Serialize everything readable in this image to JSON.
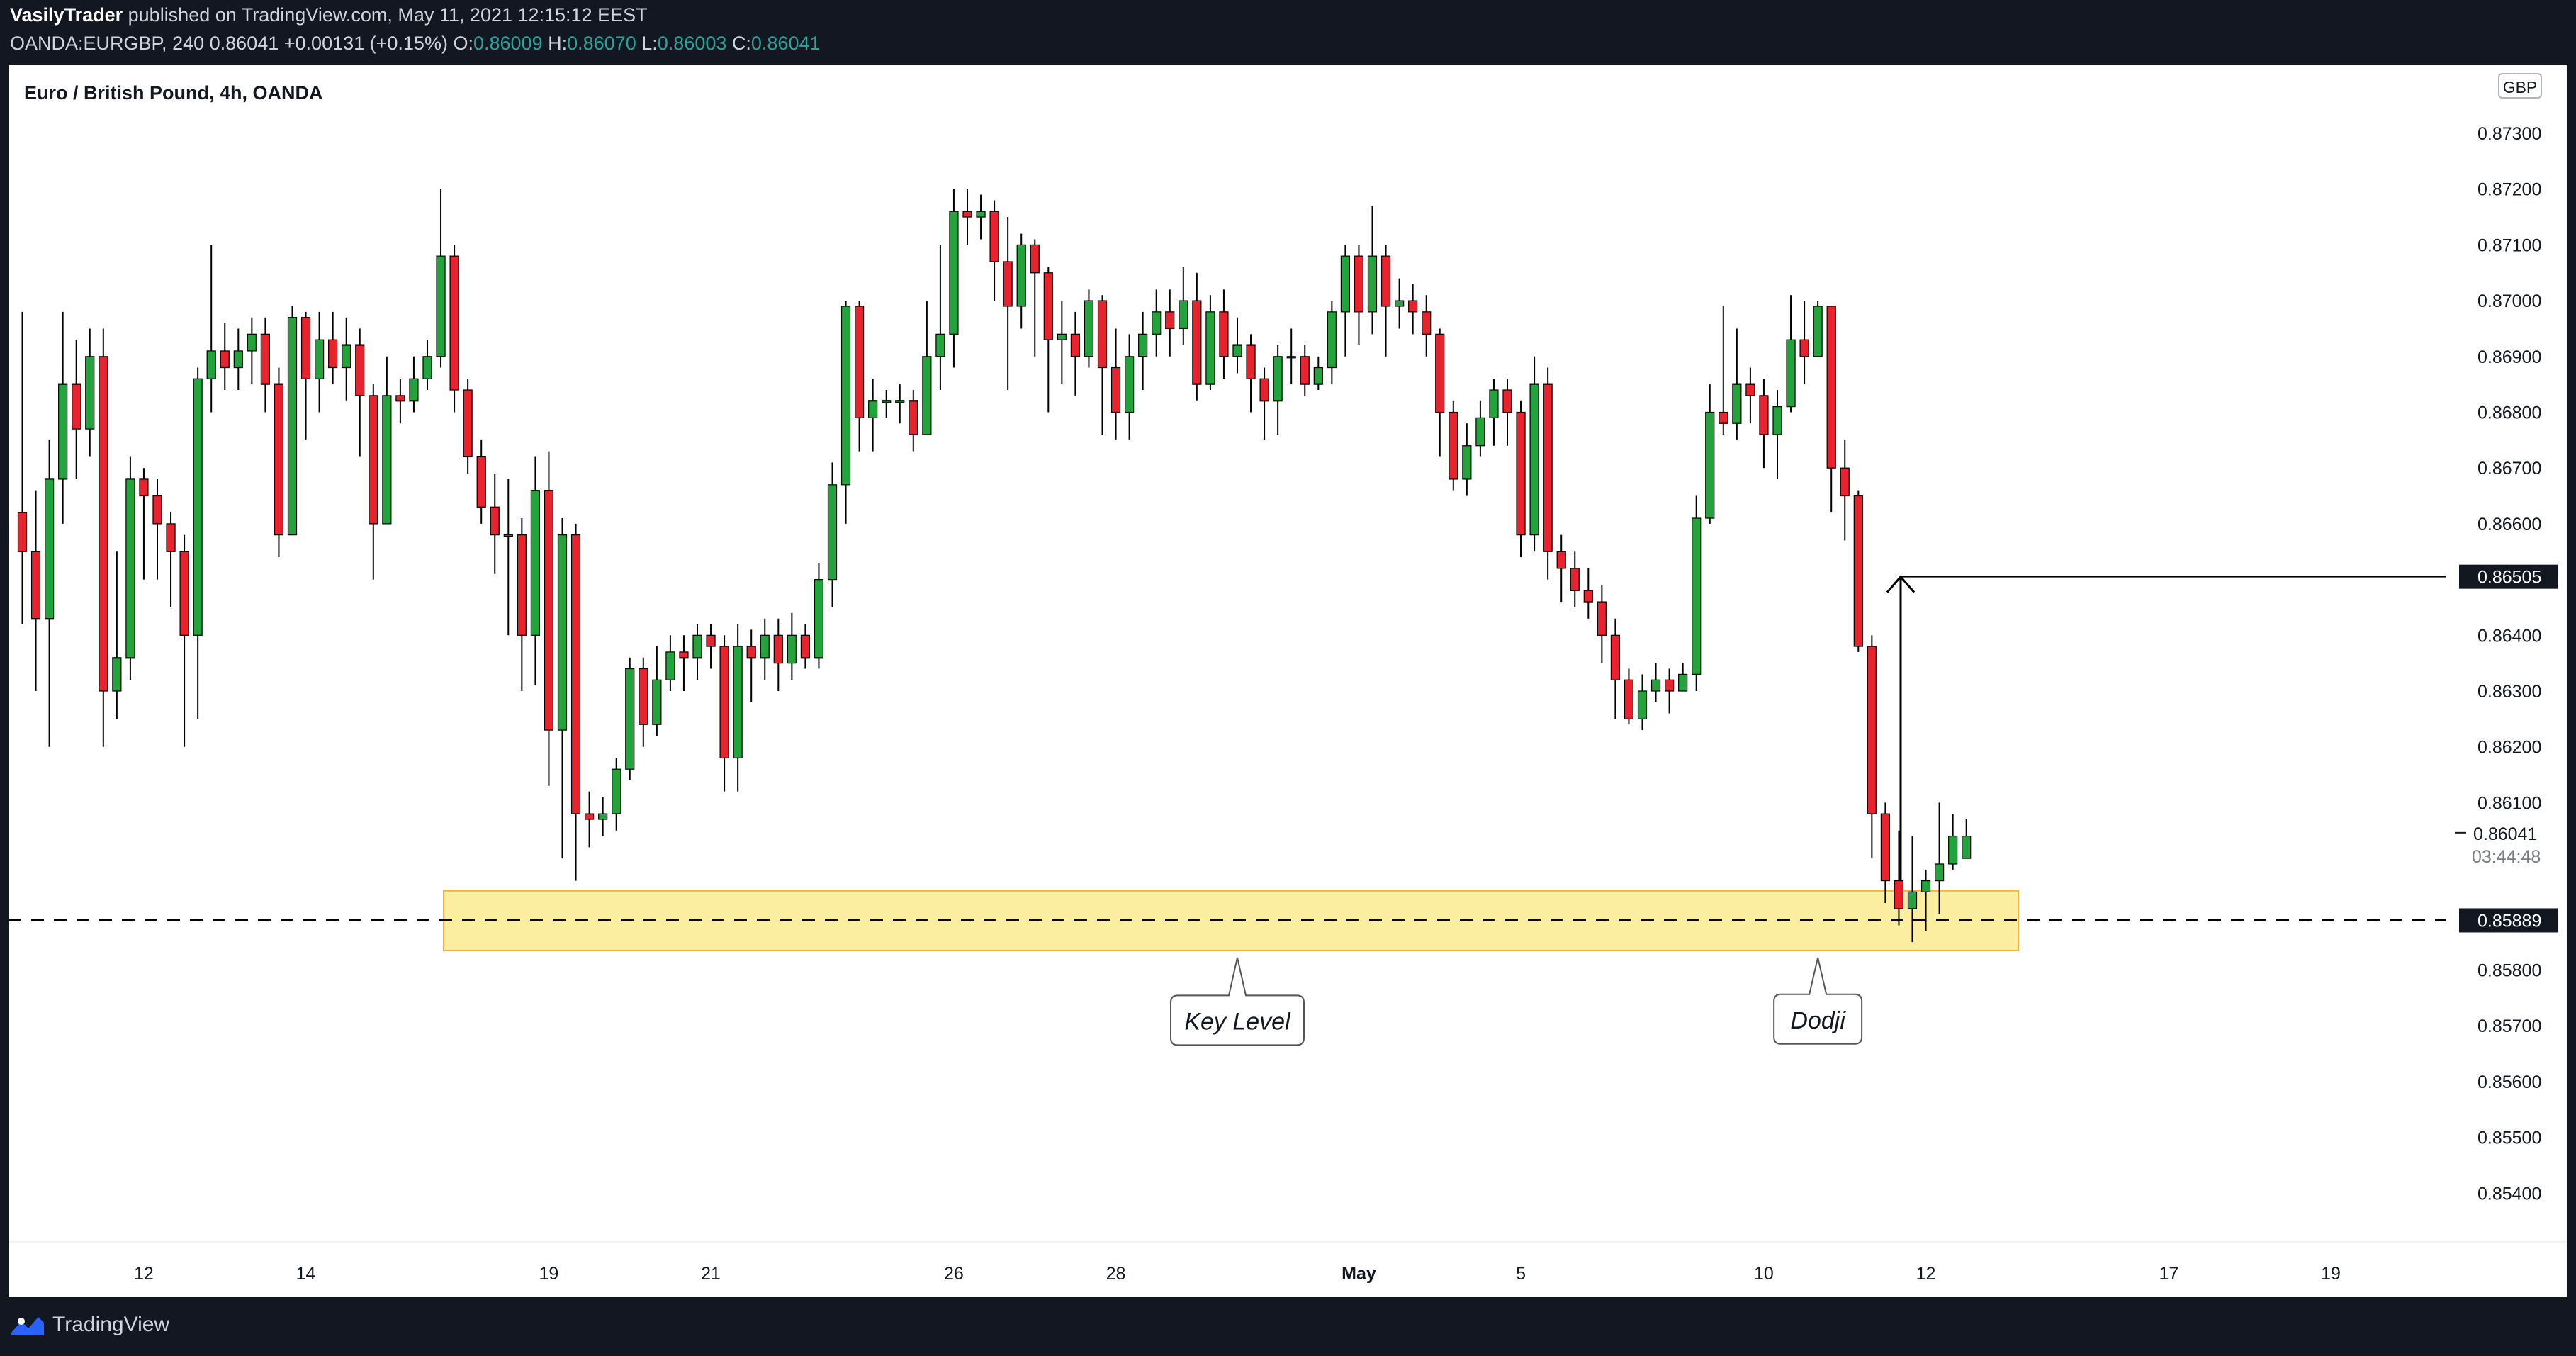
{
  "header": {
    "author": "VasilyTrader",
    "published_text": "published on TradingView.com, May 11, 2021 12:15:12 EEST",
    "symbol": "OANDA:EURGBP, 240",
    "last": "0.86041",
    "change": "+0.00131 (+0.15%)",
    "o_label": "O:",
    "o_value": "0.86009",
    "h_label": "H:",
    "h_value": "0.86070",
    "l_label": "L:",
    "l_value": "0.86003",
    "c_label": "C:",
    "c_value": "0.86041"
  },
  "footer": {
    "brand": "TradingView"
  },
  "colors": {
    "up": "#22a33c",
    "down": "#e8232d",
    "zone_fill": "#fbeea0",
    "zone_stroke": "#f2b33c",
    "axis_text": "#131722",
    "dark_tag": "#131722"
  },
  "chart_data": {
    "type": "candlestick",
    "title": "Euro / British Pound, 4h, OANDA",
    "currency_badge": "GBP",
    "y_ticks": [
      "0.87300",
      "0.87200",
      "0.87100",
      "0.87000",
      "0.86900",
      "0.86800",
      "0.86700",
      "0.86600",
      "0.86400",
      "0.86300",
      "0.86200",
      "0.86100",
      "0.85800",
      "0.85700",
      "0.85600",
      "0.85500",
      "0.85400"
    ],
    "ylim": [
      0.8534,
      0.8744
    ],
    "x_ticks": [
      {
        "label": "12",
        "i": 9
      },
      {
        "label": "14",
        "i": 21
      },
      {
        "label": "19",
        "i": 39
      },
      {
        "label": "21",
        "i": 51
      },
      {
        "label": "26",
        "i": 69
      },
      {
        "label": "28",
        "i": 81
      },
      {
        "label": "May",
        "i": 99
      },
      {
        "label": "5",
        "i": 111
      },
      {
        "label": "10",
        "i": 129
      },
      {
        "label": "12",
        "i": 141
      },
      {
        "label": "17",
        "i": 159
      },
      {
        "label": "19",
        "i": 171
      }
    ],
    "price_tags": [
      {
        "value": "0.86505",
        "price": 0.86505,
        "style": "dark"
      },
      {
        "value": "0.85889",
        "price": 0.85889,
        "style": "dark"
      },
      {
        "value": "0.86041",
        "price": 0.86041,
        "style": "plain"
      }
    ],
    "countdown": "03:44:48",
    "key_level": {
      "price": 0.85889,
      "zone_low": 0.85835,
      "zone_high": 0.85942
    },
    "target": {
      "price": 0.86505
    },
    "annotations": [
      {
        "text": "Key Level",
        "i": 90,
        "price": 0.8571
      },
      {
        "text": "Dodji",
        "i": 133,
        "price": 0.85712
      }
    ],
    "candles": [
      [
        0.8662,
        0.8655,
        0.8698,
        0.8642
      ],
      [
        0.8655,
        0.8643,
        0.8666,
        0.863
      ],
      [
        0.8643,
        0.8668,
        0.8675,
        0.862
      ],
      [
        0.8668,
        0.8685,
        0.8698,
        0.866
      ],
      [
        0.8685,
        0.8677,
        0.8693,
        0.8668
      ],
      [
        0.8677,
        0.869,
        0.8695,
        0.8672
      ],
      [
        0.869,
        0.863,
        0.8695,
        0.862
      ],
      [
        0.863,
        0.8636,
        0.8655,
        0.8625
      ],
      [
        0.8636,
        0.8668,
        0.8672,
        0.8632
      ],
      [
        0.8668,
        0.8665,
        0.867,
        0.865
      ],
      [
        0.8665,
        0.866,
        0.8668,
        0.865
      ],
      [
        0.866,
        0.8655,
        0.8662,
        0.8645
      ],
      [
        0.8655,
        0.864,
        0.8658,
        0.862
      ],
      [
        0.864,
        0.8686,
        0.8688,
        0.8625
      ],
      [
        0.8686,
        0.8691,
        0.871,
        0.868
      ],
      [
        0.8691,
        0.8688,
        0.8696,
        0.8684
      ],
      [
        0.8688,
        0.8691,
        0.8695,
        0.8684
      ],
      [
        0.8691,
        0.8694,
        0.8697,
        0.8685
      ],
      [
        0.8694,
        0.8685,
        0.8697,
        0.868
      ],
      [
        0.8685,
        0.8658,
        0.8688,
        0.8654
      ],
      [
        0.8658,
        0.8697,
        0.8699,
        0.867
      ],
      [
        0.8697,
        0.8686,
        0.8698,
        0.8675
      ],
      [
        0.8686,
        0.8693,
        0.8698,
        0.868
      ],
      [
        0.8693,
        0.8688,
        0.8698,
        0.8685
      ],
      [
        0.8688,
        0.8692,
        0.8697,
        0.8682
      ],
      [
        0.8692,
        0.8683,
        0.8695,
        0.8672
      ],
      [
        0.8683,
        0.866,
        0.8685,
        0.865
      ],
      [
        0.866,
        0.8683,
        0.869,
        0.866
      ],
      [
        0.8683,
        0.8682,
        0.8686,
        0.8678
      ],
      [
        0.8682,
        0.8686,
        0.869,
        0.868
      ],
      [
        0.8686,
        0.869,
        0.8693,
        0.8684
      ],
      [
        0.869,
        0.8708,
        0.872,
        0.8688
      ],
      [
        0.8708,
        0.8684,
        0.871,
        0.868
      ],
      [
        0.8684,
        0.8672,
        0.8686,
        0.8669
      ],
      [
        0.8672,
        0.8663,
        0.8675,
        0.866
      ],
      [
        0.8663,
        0.8658,
        0.8669,
        0.8651
      ],
      [
        0.8658,
        0.8658,
        0.8668,
        0.864
      ],
      [
        0.8658,
        0.864,
        0.8661,
        0.863
      ],
      [
        0.864,
        0.8666,
        0.8672,
        0.8631
      ],
      [
        0.8666,
        0.8623,
        0.8673,
        0.8613
      ],
      [
        0.8623,
        0.8658,
        0.8661,
        0.86
      ],
      [
        0.8658,
        0.8608,
        0.866,
        0.8596
      ],
      [
        0.8608,
        0.8607,
        0.8612,
        0.8602
      ],
      [
        0.8607,
        0.8608,
        0.8611,
        0.8604
      ],
      [
        0.8608,
        0.8616,
        0.8618,
        0.8605
      ],
      [
        0.8616,
        0.8634,
        0.8636,
        0.8614
      ],
      [
        0.8634,
        0.8624,
        0.8636,
        0.862
      ],
      [
        0.8624,
        0.8632,
        0.8638,
        0.8622
      ],
      [
        0.8632,
        0.8637,
        0.864,
        0.863
      ],
      [
        0.8637,
        0.8636,
        0.864,
        0.863
      ],
      [
        0.8636,
        0.864,
        0.8642,
        0.8632
      ],
      [
        0.864,
        0.8638,
        0.8642,
        0.8634
      ],
      [
        0.8638,
        0.8618,
        0.864,
        0.8612
      ],
      [
        0.8618,
        0.8638,
        0.8642,
        0.8612
      ],
      [
        0.8638,
        0.8636,
        0.8641,
        0.8628
      ],
      [
        0.8636,
        0.864,
        0.8643,
        0.8632
      ],
      [
        0.864,
        0.8635,
        0.8643,
        0.863
      ],
      [
        0.8635,
        0.864,
        0.8644,
        0.8632
      ],
      [
        0.864,
        0.8636,
        0.8642,
        0.8634
      ],
      [
        0.8636,
        0.865,
        0.8653,
        0.8634
      ],
      [
        0.865,
        0.8667,
        0.8671,
        0.8645
      ],
      [
        0.8667,
        0.8699,
        0.87,
        0.866
      ],
      [
        0.8699,
        0.8679,
        0.87,
        0.8673
      ],
      [
        0.8679,
        0.8682,
        0.8686,
        0.8673
      ],
      [
        0.8682,
        0.8682,
        0.8684,
        0.8679
      ],
      [
        0.8682,
        0.8682,
        0.8685,
        0.8678
      ],
      [
        0.8682,
        0.8676,
        0.8684,
        0.8673
      ],
      [
        0.8676,
        0.869,
        0.87,
        0.8676
      ],
      [
        0.869,
        0.8694,
        0.871,
        0.8684
      ],
      [
        0.8694,
        0.8716,
        0.872,
        0.8688
      ],
      [
        0.8716,
        0.8715,
        0.872,
        0.871
      ],
      [
        0.8715,
        0.8716,
        0.8719,
        0.8711
      ],
      [
        0.8716,
        0.8707,
        0.8718,
        0.87
      ],
      [
        0.8707,
        0.8699,
        0.8715,
        0.8684
      ],
      [
        0.8699,
        0.871,
        0.8712,
        0.8695
      ],
      [
        0.871,
        0.8705,
        0.8711,
        0.869
      ],
      [
        0.8705,
        0.8693,
        0.8706,
        0.868
      ],
      [
        0.8693,
        0.8694,
        0.87,
        0.8685
      ],
      [
        0.8694,
        0.869,
        0.8698,
        0.8683
      ],
      [
        0.869,
        0.87,
        0.8702,
        0.8688
      ],
      [
        0.87,
        0.8688,
        0.8701,
        0.8676
      ],
      [
        0.8688,
        0.868,
        0.8695,
        0.8675
      ],
      [
        0.868,
        0.869,
        0.8694,
        0.8675
      ],
      [
        0.869,
        0.8694,
        0.8698,
        0.8684
      ],
      [
        0.8694,
        0.8698,
        0.8702,
        0.869
      ],
      [
        0.8698,
        0.8695,
        0.8702,
        0.869
      ],
      [
        0.8695,
        0.87,
        0.8706,
        0.8692
      ],
      [
        0.87,
        0.8685,
        0.8705,
        0.8682
      ],
      [
        0.8685,
        0.8698,
        0.8701,
        0.8684
      ],
      [
        0.8698,
        0.869,
        0.8702,
        0.8686
      ],
      [
        0.869,
        0.8692,
        0.8697,
        0.8687
      ],
      [
        0.8692,
        0.8686,
        0.8694,
        0.868
      ],
      [
        0.8686,
        0.8682,
        0.8688,
        0.8675
      ],
      [
        0.8682,
        0.869,
        0.8692,
        0.8676
      ],
      [
        0.869,
        0.869,
        0.8695,
        0.8685
      ],
      [
        0.869,
        0.8685,
        0.8692,
        0.8683
      ],
      [
        0.8685,
        0.8688,
        0.869,
        0.8684
      ],
      [
        0.8688,
        0.8698,
        0.87,
        0.8685
      ],
      [
        0.8698,
        0.8708,
        0.871,
        0.869
      ],
      [
        0.8708,
        0.8698,
        0.871,
        0.8692
      ],
      [
        0.8698,
        0.8708,
        0.8717,
        0.8694
      ],
      [
        0.8708,
        0.8699,
        0.871,
        0.869
      ],
      [
        0.8699,
        0.87,
        0.8704,
        0.8695
      ],
      [
        0.87,
        0.8698,
        0.8703,
        0.8694
      ],
      [
        0.8698,
        0.8694,
        0.8701,
        0.869
      ],
      [
        0.8694,
        0.868,
        0.8695,
        0.8672
      ],
      [
        0.868,
        0.8668,
        0.8682,
        0.8666
      ],
      [
        0.8668,
        0.8674,
        0.8678,
        0.8665
      ],
      [
        0.8674,
        0.8679,
        0.8682,
        0.8672
      ],
      [
        0.8679,
        0.8684,
        0.8686,
        0.8674
      ],
      [
        0.8684,
        0.868,
        0.8686,
        0.8674
      ],
      [
        0.868,
        0.8658,
        0.8682,
        0.8654
      ],
      [
        0.8658,
        0.8685,
        0.869,
        0.8655
      ],
      [
        0.8685,
        0.8655,
        0.8688,
        0.865
      ],
      [
        0.8655,
        0.8652,
        0.8658,
        0.8646
      ],
      [
        0.8652,
        0.8648,
        0.8655,
        0.8645
      ],
      [
        0.8648,
        0.8646,
        0.8652,
        0.8643
      ],
      [
        0.8646,
        0.864,
        0.8649,
        0.8635
      ],
      [
        0.864,
        0.8632,
        0.8643,
        0.8625
      ],
      [
        0.8632,
        0.8625,
        0.8634,
        0.8624
      ],
      [
        0.8625,
        0.863,
        0.8633,
        0.8623
      ],
      [
        0.863,
        0.8632,
        0.8635,
        0.8628
      ],
      [
        0.8632,
        0.863,
        0.8634,
        0.8626
      ],
      [
        0.863,
        0.8633,
        0.8635,
        0.863
      ],
      [
        0.8633,
        0.8661,
        0.8665,
        0.863
      ],
      [
        0.8661,
        0.868,
        0.8685,
        0.866
      ],
      [
        0.868,
        0.8678,
        0.8699,
        0.8676
      ],
      [
        0.8678,
        0.8685,
        0.8695,
        0.8675
      ],
      [
        0.8685,
        0.8683,
        0.8688,
        0.8678
      ],
      [
        0.8683,
        0.8676,
        0.8686,
        0.867
      ],
      [
        0.8676,
        0.8681,
        0.8684,
        0.8668
      ],
      [
        0.8681,
        0.8693,
        0.8701,
        0.868
      ],
      [
        0.8693,
        0.869,
        0.87,
        0.8685
      ],
      [
        0.869,
        0.8699,
        0.87,
        0.869
      ],
      [
        0.8699,
        0.867,
        0.8699,
        0.8662
      ],
      [
        0.867,
        0.8665,
        0.8675,
        0.8657
      ],
      [
        0.8665,
        0.8638,
        0.8666,
        0.8637
      ],
      [
        0.8638,
        0.8608,
        0.864,
        0.86
      ],
      [
        0.8608,
        0.8596,
        0.861,
        0.8592
      ],
      [
        0.8596,
        0.8591,
        0.8605,
        0.8588
      ],
      [
        0.8591,
        0.8594,
        0.8604,
        0.8585
      ],
      [
        0.8594,
        0.8596,
        0.8598,
        0.8587
      ],
      [
        0.8596,
        0.8599,
        0.861,
        0.859
      ],
      [
        0.8599,
        0.8604,
        0.8608,
        0.8598
      ],
      [
        0.86,
        0.8604,
        0.8607,
        0.86
      ]
    ]
  }
}
